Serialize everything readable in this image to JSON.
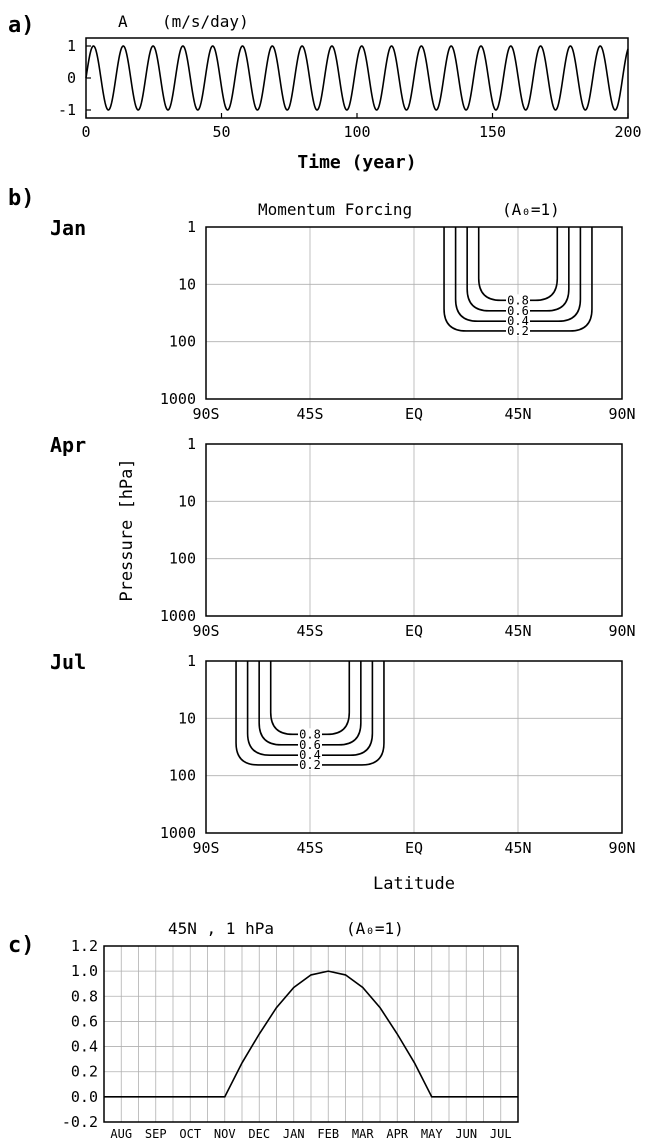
{
  "panel_tags": {
    "a": "a)",
    "b": "b)",
    "c": "c)"
  },
  "chart_data": [
    {
      "id": "a",
      "type": "line",
      "title": "A",
      "title_unit": "(m/s/day)",
      "xlabel": "Time (year)",
      "ylabel": "",
      "xlim": [
        0,
        200
      ],
      "ylim": [
        -1.25,
        1.25
      ],
      "xticks": [
        0,
        50,
        100,
        150,
        200
      ],
      "yticks": [
        1,
        0,
        -1
      ],
      "xtick_labels": [
        "0",
        "50",
        "100",
        "150",
        "200"
      ],
      "ytick_labels": [
        "1",
        "0",
        "-1"
      ],
      "series": [
        {
          "function": "sine",
          "amplitude": 1,
          "period_years": 11,
          "x_range": [
            0,
            200
          ]
        }
      ],
      "grid": false
    },
    {
      "id": "b",
      "type": "contour",
      "title": "Momentum Forcing",
      "title_param": "(A₀=1)",
      "xlabel": "Latitude",
      "ylabel": "Pressure [hPa]",
      "xticks": [
        -90,
        -45,
        0,
        45,
        90
      ],
      "xtick_labels": [
        "90S",
        "45S",
        "EQ",
        "45N",
        "90N"
      ],
      "yticks": [
        1,
        10,
        100,
        1000
      ],
      "ytick_labels": [
        "1",
        "10",
        "100",
        "1000"
      ],
      "yscale": "log",
      "grid": true,
      "contour_levels": [
        0.2,
        0.4,
        0.6,
        0.8
      ],
      "contour_labels": [
        "0.8",
        "0.6",
        "0.4",
        "0.2"
      ],
      "panels": [
        {
          "month": "Jan",
          "forcing_center_lat": 45,
          "contours": [
            {
              "level": 0.2,
              "lat_range": [
                13,
                77
              ],
              "bottom_hpa": 65
            },
            {
              "level": 0.4,
              "lat_range": [
                18,
                72
              ],
              "bottom_hpa": 44
            },
            {
              "level": 0.6,
              "lat_range": [
                23,
                67
              ],
              "bottom_hpa": 29
            },
            {
              "level": 0.8,
              "lat_range": [
                28,
                62
              ],
              "bottom_hpa": 19
            }
          ]
        },
        {
          "month": "Apr",
          "forcing_center_lat": null,
          "contours": []
        },
        {
          "month": "Jul",
          "forcing_center_lat": -45,
          "contours": [
            {
              "level": 0.2,
              "lat_range": [
                -77,
                -13
              ],
              "bottom_hpa": 65
            },
            {
              "level": 0.4,
              "lat_range": [
                -72,
                -18
              ],
              "bottom_hpa": 44
            },
            {
              "level": 0.6,
              "lat_range": [
                -67,
                -23
              ],
              "bottom_hpa": 29
            },
            {
              "level": 0.8,
              "lat_range": [
                -62,
                -28
              ],
              "bottom_hpa": 19
            }
          ]
        }
      ]
    },
    {
      "id": "c",
      "type": "line",
      "title": "45N , 1 hPa",
      "title_param": "(A₀=1)",
      "xlabel": "",
      "ylabel": "",
      "categories": [
        "AUG",
        "SEP",
        "OCT",
        "NOV",
        "DEC",
        "JAN",
        "FEB",
        "MAR",
        "APR",
        "MAY",
        "JUN",
        "JUL"
      ],
      "ylim": [
        -0.2,
        1.2
      ],
      "yticks": [
        -0.2,
        0.0,
        0.2,
        0.4,
        0.6,
        0.8,
        1.0,
        1.2
      ],
      "ytick_labels": [
        "-0.2",
        "0.0",
        "0.2",
        "0.4",
        "0.6",
        "0.8",
        "1.0",
        "1.2"
      ],
      "grid": true,
      "series": [
        {
          "points": [
            [
              0.0,
              0.0
            ],
            [
              3.0,
              0.0
            ],
            [
              3.5,
              0.0
            ],
            [
              4.0,
              0.27
            ],
            [
              4.5,
              0.5
            ],
            [
              5.0,
              0.71
            ],
            [
              5.5,
              0.87
            ],
            [
              6.0,
              0.97
            ],
            [
              6.5,
              1.0
            ],
            [
              7.0,
              0.97
            ],
            [
              7.5,
              0.87
            ],
            [
              8.0,
              0.71
            ],
            [
              8.5,
              0.5
            ],
            [
              9.0,
              0.27
            ],
            [
              9.5,
              0.0
            ],
            [
              12.0,
              0.0
            ]
          ]
        }
      ]
    }
  ]
}
